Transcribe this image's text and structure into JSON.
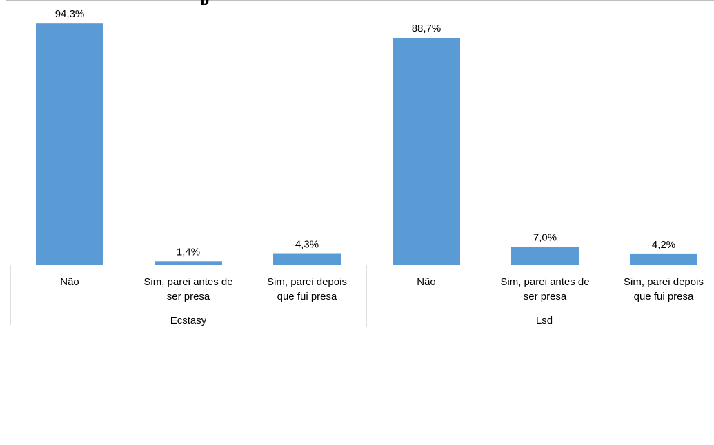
{
  "chart_data": {
    "type": "bar",
    "groups": [
      {
        "name": "Ecstasy",
        "categories": [
          [
            "Não"
          ],
          [
            "Sim, parei antes de",
            "ser presa"
          ],
          [
            "Sim, parei depois",
            "que fui presa"
          ]
        ],
        "values": [
          94.3,
          1.4,
          4.3
        ],
        "labels": [
          "94,3%",
          "1,4%",
          "4,3%"
        ]
      },
      {
        "name": "Lsd",
        "categories": [
          [
            "Não"
          ],
          [
            "Sim, parei antes de",
            "ser presa"
          ],
          [
            "Sim, parei depois",
            "que fui presa"
          ]
        ],
        "values": [
          88.7,
          7.0,
          4.2
        ],
        "labels": [
          "88,7%",
          "7,0%",
          "4,2%"
        ]
      }
    ],
    "ylim": [
      0,
      100
    ],
    "grid": false,
    "bar_color": "#5b9bd5",
    "axis_color": "#bfbfbf"
  }
}
